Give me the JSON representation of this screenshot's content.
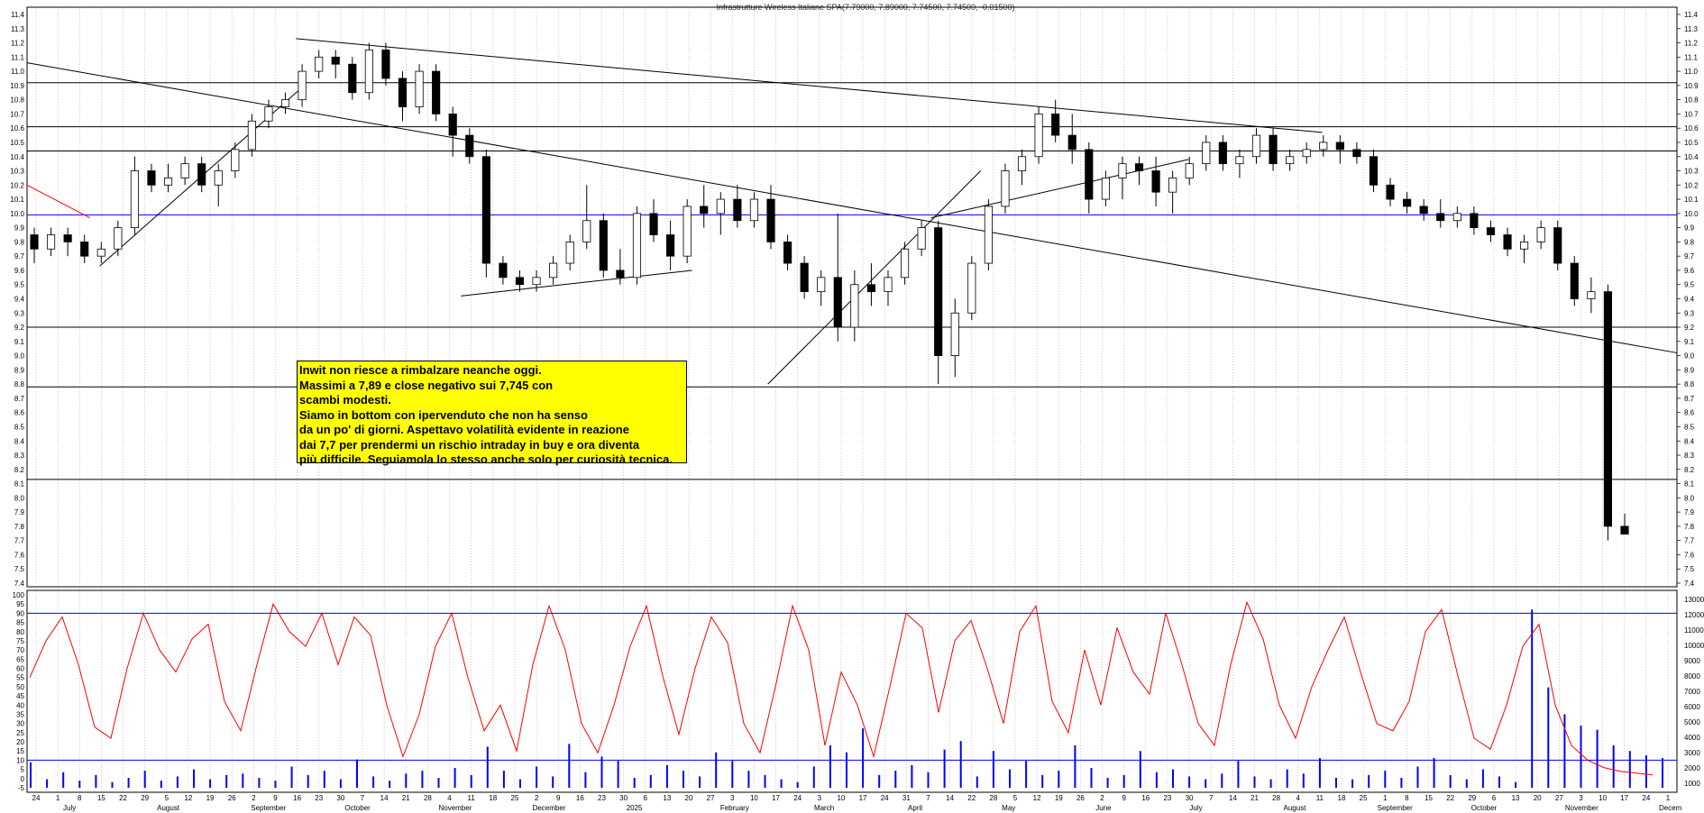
{
  "chart_data": [
    {
      "type": "candlestick",
      "title": "Infrastrutture Wireless Italiane SPA(7.79000, 7.89000, 7.74500, 7.74500, -0.01500)",
      "ylim": [
        7.4,
        11.4
      ],
      "y_ticks": [
        "11.4",
        "11.3",
        "11.2",
        "11.1",
        "11.0",
        "10.9",
        "10.8",
        "10.7",
        "10.6",
        "10.5",
        "10.4",
        "10.3",
        "10.2",
        "10.1",
        "10.0",
        "9.9",
        "9.8",
        "9.7",
        "9.6",
        "9.5",
        "9.4",
        "9.3",
        "9.2",
        "9.1",
        "9.0",
        "8.9",
        "8.8",
        "8.7",
        "8.6",
        "8.5",
        "8.4",
        "8.3",
        "8.2",
        "8.1",
        "8.0",
        "7.9",
        "7.8",
        "7.7",
        "7.6",
        "7.5",
        "7.4"
      ],
      "day_ticks": [
        "24",
        "1",
        "8",
        "15",
        "22",
        "29",
        "5",
        "12",
        "19",
        "26",
        "2",
        "9",
        "16",
        "23",
        "30",
        "7",
        "14",
        "21",
        "28",
        "4",
        "11",
        "18",
        "25",
        "2",
        "9",
        "16",
        "23",
        "30",
        "6",
        "13",
        "20",
        "27",
        "3",
        "10",
        "17",
        "24",
        "3",
        "10",
        "17",
        "24",
        "31",
        "7",
        "14",
        "22",
        "28",
        "5",
        "12",
        "19",
        "26",
        "2",
        "9",
        "16",
        "23",
        "30",
        "7",
        "14",
        "21",
        "28",
        "4",
        "11",
        "18",
        "25",
        "1",
        "8",
        "15",
        "22",
        "29",
        "6",
        "13",
        "20",
        "27",
        "3",
        "10",
        "17",
        "24",
        "1"
      ],
      "month_labels": [
        "July",
        "August",
        "September",
        "October",
        "November",
        "December",
        "2025",
        "February",
        "March",
        "April",
        "May",
        "June",
        "July",
        "August",
        "September",
        "October",
        "November",
        "Decem"
      ],
      "ohlc": [
        [
          9.85,
          9.9,
          9.65,
          9.75
        ],
        [
          9.75,
          9.9,
          9.7,
          9.85
        ],
        [
          9.85,
          9.9,
          9.7,
          9.8
        ],
        [
          9.8,
          9.85,
          9.65,
          9.7
        ],
        [
          9.7,
          9.8,
          9.65,
          9.75
        ],
        [
          9.75,
          9.95,
          9.7,
          9.9
        ],
        [
          9.9,
          10.4,
          9.85,
          10.3
        ],
        [
          10.3,
          10.35,
          10.15,
          10.2
        ],
        [
          10.2,
          10.35,
          10.15,
          10.25
        ],
        [
          10.25,
          10.4,
          10.2,
          10.35
        ],
        [
          10.35,
          10.4,
          10.15,
          10.2
        ],
        [
          10.2,
          10.35,
          10.05,
          10.3
        ],
        [
          10.3,
          10.5,
          10.25,
          10.45
        ],
        [
          10.45,
          10.7,
          10.4,
          10.65
        ],
        [
          10.65,
          10.8,
          10.6,
          10.75
        ],
        [
          10.75,
          10.85,
          10.7,
          10.8
        ],
        [
          10.8,
          11.05,
          10.75,
          11.0
        ],
        [
          11.0,
          11.15,
          10.95,
          11.1
        ],
        [
          11.1,
          11.15,
          10.95,
          11.05
        ],
        [
          11.05,
          11.1,
          10.8,
          10.85
        ],
        [
          10.85,
          11.2,
          10.8,
          11.15
        ],
        [
          11.15,
          11.2,
          10.9,
          10.95
        ],
        [
          10.95,
          11.0,
          10.65,
          10.75
        ],
        [
          10.75,
          11.05,
          10.7,
          11.0
        ],
        [
          11.0,
          11.05,
          10.65,
          10.7
        ],
        [
          10.7,
          10.75,
          10.4,
          10.55
        ],
        [
          10.55,
          10.6,
          10.35,
          10.4
        ],
        [
          10.4,
          10.45,
          9.55,
          9.65
        ],
        [
          9.65,
          9.7,
          9.5,
          9.55
        ],
        [
          9.55,
          9.6,
          9.45,
          9.5
        ],
        [
          9.5,
          9.6,
          9.45,
          9.55
        ],
        [
          9.55,
          9.7,
          9.5,
          9.65
        ],
        [
          9.65,
          9.85,
          9.6,
          9.8
        ],
        [
          9.8,
          10.2,
          9.75,
          9.95
        ],
        [
          9.95,
          10.0,
          9.55,
          9.6
        ],
        [
          9.6,
          9.75,
          9.5,
          9.55
        ],
        [
          9.55,
          10.05,
          9.5,
          10.0
        ],
        [
          10.0,
          10.1,
          9.8,
          9.85
        ],
        [
          9.85,
          9.95,
          9.6,
          9.7
        ],
        [
          9.7,
          10.1,
          9.65,
          10.05
        ],
        [
          10.05,
          10.2,
          9.9,
          10.0
        ],
        [
          10.0,
          10.15,
          9.85,
          10.1
        ],
        [
          10.1,
          10.2,
          9.9,
          9.95
        ],
        [
          9.95,
          10.15,
          9.9,
          10.1
        ],
        [
          10.1,
          10.2,
          9.75,
          9.8
        ],
        [
          9.8,
          9.85,
          9.6,
          9.65
        ],
        [
          9.65,
          9.7,
          9.4,
          9.45
        ],
        [
          9.45,
          9.6,
          9.35,
          9.55
        ],
        [
          9.55,
          10.0,
          9.1,
          9.2
        ],
        [
          9.2,
          9.6,
          9.1,
          9.5
        ],
        [
          9.5,
          9.65,
          9.35,
          9.45
        ],
        [
          9.45,
          9.6,
          9.35,
          9.55
        ],
        [
          9.55,
          9.8,
          9.5,
          9.75
        ],
        [
          9.75,
          9.95,
          9.7,
          9.9
        ],
        [
          9.9,
          9.95,
          8.8,
          9.0
        ],
        [
          9.0,
          9.4,
          8.85,
          9.3
        ],
        [
          9.3,
          9.7,
          9.25,
          9.65
        ],
        [
          9.65,
          10.1,
          9.6,
          10.05
        ],
        [
          10.05,
          10.35,
          10.0,
          10.3
        ],
        [
          10.3,
          10.45,
          10.2,
          10.4
        ],
        [
          10.4,
          10.75,
          10.35,
          10.7
        ],
        [
          10.7,
          10.8,
          10.5,
          10.55
        ],
        [
          10.55,
          10.7,
          10.35,
          10.45
        ],
        [
          10.45,
          10.5,
          10.0,
          10.1
        ],
        [
          10.1,
          10.3,
          10.05,
          10.25
        ],
        [
          10.25,
          10.4,
          10.1,
          10.35
        ],
        [
          10.35,
          10.4,
          10.2,
          10.3
        ],
        [
          10.3,
          10.4,
          10.05,
          10.15
        ],
        [
          10.15,
          10.3,
          10.0,
          10.25
        ],
        [
          10.25,
          10.4,
          10.2,
          10.35
        ],
        [
          10.35,
          10.55,
          10.3,
          10.5
        ],
        [
          10.5,
          10.55,
          10.3,
          10.35
        ],
        [
          10.35,
          10.45,
          10.25,
          10.4
        ],
        [
          10.4,
          10.6,
          10.35,
          10.55
        ],
        [
          10.55,
          10.6,
          10.3,
          10.35
        ],
        [
          10.35,
          10.45,
          10.3,
          10.4
        ],
        [
          10.4,
          10.5,
          10.35,
          10.45
        ],
        [
          10.45,
          10.55,
          10.4,
          10.5
        ],
        [
          10.5,
          10.55,
          10.35,
          10.45
        ],
        [
          10.45,
          10.5,
          10.35,
          10.4
        ],
        [
          10.4,
          10.45,
          10.15,
          10.2
        ],
        [
          10.2,
          10.25,
          10.05,
          10.1
        ],
        [
          10.1,
          10.15,
          10.0,
          10.05
        ],
        [
          10.05,
          10.1,
          9.95,
          10.0
        ],
        [
          10.0,
          10.1,
          9.9,
          9.95
        ],
        [
          9.95,
          10.05,
          9.9,
          10.0
        ],
        [
          10.0,
          10.05,
          9.85,
          9.9
        ],
        [
          9.9,
          9.95,
          9.8,
          9.85
        ],
        [
          9.85,
          9.9,
          9.7,
          9.75
        ],
        [
          9.75,
          9.85,
          9.65,
          9.8
        ],
        [
          9.8,
          9.95,
          9.75,
          9.9
        ],
        [
          9.9,
          9.95,
          9.6,
          9.65
        ],
        [
          9.65,
          9.7,
          9.35,
          9.4
        ],
        [
          9.4,
          9.55,
          9.3,
          9.45
        ],
        [
          9.45,
          9.5,
          7.7,
          7.8
        ],
        [
          7.8,
          7.89,
          7.745,
          7.745
        ]
      ],
      "horizontal_levels": [
        10.92,
        10.61,
        10.44,
        9.99,
        9.2,
        8.78,
        8.13
      ],
      "trendlines": [
        {
          "from": [
            0.0,
            11.06
          ],
          "to": [
            1.0,
            9.02
          ]
        },
        {
          "from": [
            0.163,
            11.23
          ],
          "to": [
            0.785,
            10.57
          ]
        },
        {
          "from": [
            0.044,
            9.63
          ],
          "to": [
            0.168,
            10.9
          ]
        },
        {
          "from": [
            0.263,
            9.42
          ],
          "to": [
            0.403,
            9.6
          ]
        },
        {
          "from": [
            0.449,
            8.8
          ],
          "to": [
            0.578,
            10.3
          ]
        },
        {
          "from": [
            0.548,
            9.97
          ],
          "to": [
            0.704,
            10.38
          ]
        },
        {
          "from": [
            0.0,
            10.2
          ],
          "to": [
            0.038,
            9.97
          ],
          "color": "#ff0000"
        }
      ]
    },
    {
      "type": "line",
      "ylim": [
        -5,
        100
      ],
      "y_ticks": [
        "100",
        "95",
        "90",
        "85",
        "80",
        "75",
        "70",
        "65",
        "60",
        "55",
        "50",
        "45",
        "40",
        "35",
        "30",
        "25",
        "20",
        "15",
        "10",
        "5",
        "0",
        "-5"
      ],
      "right_ticks": [
        "13000",
        "12000",
        "11000",
        "10000",
        "9000",
        "8000",
        "7000",
        "6000",
        "5000",
        "4000",
        "3000",
        "2000",
        "1000"
      ],
      "reference_levels": [
        90,
        10
      ],
      "oscillator": [
        55,
        75,
        88,
        62,
        28,
        22,
        60,
        90,
        70,
        58,
        76,
        84,
        42,
        26,
        62,
        95,
        80,
        72,
        90,
        62,
        88,
        78,
        40,
        12,
        35,
        72,
        90,
        55,
        26,
        40,
        15,
        62,
        94,
        70,
        30,
        14,
        40,
        72,
        94,
        56,
        24,
        60,
        88,
        74,
        30,
        14,
        52,
        94,
        70,
        18,
        58,
        40,
        12,
        50,
        90,
        82,
        36,
        75,
        86,
        60,
        30,
        80,
        94,
        42,
        25,
        70,
        40,
        82,
        58,
        46,
        90,
        62,
        30,
        18,
        62,
        96,
        76,
        40,
        22,
        50,
        70,
        88,
        58,
        30,
        26,
        42,
        80,
        92,
        56,
        22,
        16,
        40,
        72,
        84,
        40,
        18,
        10,
        6,
        4,
        3,
        2
      ],
      "volume": [
        1800,
        600,
        1100,
        500,
        900,
        400,
        700,
        1200,
        500,
        800,
        1300,
        600,
        900,
        1000,
        700,
        500,
        1500,
        900,
        1200,
        600,
        2000,
        800,
        500,
        1000,
        1200,
        700,
        1400,
        900,
        2900,
        1200,
        600,
        1500,
        800,
        3100,
        1100,
        2200,
        1900,
        700,
        900,
        1600,
        1200,
        800,
        2500,
        1900,
        1200,
        900,
        600,
        400,
        1500,
        3000,
        2500,
        4200,
        900,
        1200,
        1600,
        1100,
        2700,
        3300,
        800,
        2600,
        1300,
        1900,
        900,
        1200,
        3000,
        1400,
        700,
        900,
        2600,
        1100,
        1300,
        800,
        600,
        1000,
        1900,
        800,
        600,
        1300,
        1000,
        2100,
        700,
        600,
        900,
        1200,
        700,
        1500,
        2100,
        900,
        600,
        1300,
        800,
        400,
        12600,
        7100,
        5200,
        4400,
        4100,
        3000,
        2600,
        2300,
        2100
      ]
    }
  ],
  "annotation": {
    "lines": [
      "Inwit non riesce a rimbalzare neanche oggi.",
      "Massimi a 7,89 e close negativo sui 7,745 con",
      "scambi modesti.",
      "Siamo in bottom con ipervenduto che non ha senso",
      "da un po' di giorni. Aspettavo volatilità evidente in reazione",
      "dai 7,7 per prendermi un rischio intraday in buy e ora diventa",
      "più difficile. Seguiamola lo stesso anche solo per curiosità tecnica."
    ]
  },
  "colors": {
    "candle": "#000000",
    "level": "#000000",
    "support_blue": "#0000ff",
    "oscillator": "#ff0000",
    "volume": "#0000ff",
    "note_bg": "#ffff00",
    "grid": "#aaaaaa"
  }
}
